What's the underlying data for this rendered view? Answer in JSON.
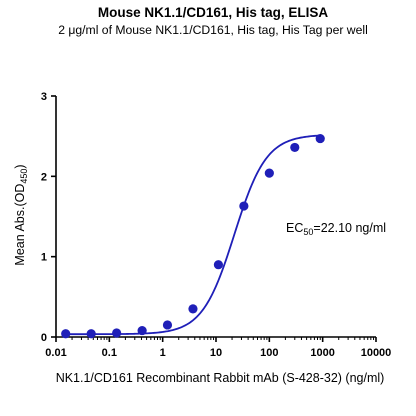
{
  "chart_data": {
    "type": "scatter",
    "title": "Mouse NK1.1/CD161, His tag, ELISA",
    "subtitle": "2 μg/ml of Mouse NK1.1/CD161, His tag, His Tag per well",
    "xlabel": "NK1.1/CD161 Recombinant Rabbit mAb (S-428-32) (ng/ml)",
    "ylabel": {
      "main": "Mean Abs.(OD",
      "sub": "450",
      "close": ")"
    },
    "xscale": "log",
    "xlim": [
      0.01,
      10000
    ],
    "ylim": [
      0,
      3
    ],
    "xticks": [
      "0.01",
      "0.1",
      "1",
      "10",
      "100",
      "1000",
      "10000"
    ],
    "xtick_values": [
      0.01,
      0.1,
      1,
      10,
      100,
      1000,
      10000
    ],
    "yticks": [
      "0",
      "1",
      "2",
      "3"
    ],
    "ytick_values": [
      0,
      1,
      2,
      3
    ],
    "x": [
      0.0152,
      0.0457,
      0.137,
      0.412,
      1.23,
      3.7,
      11.1,
      33.3,
      100,
      300,
      900
    ],
    "y": [
      0.04,
      0.04,
      0.05,
      0.08,
      0.15,
      0.35,
      0.9,
      1.63,
      2.04,
      2.36,
      2.47
    ],
    "fit": {
      "bottom": 0.035,
      "top": 2.52,
      "ec50": 22.1,
      "hill": 1.45
    },
    "annotation": {
      "prefix": "EC",
      "sub": "50",
      "suffix": "=22.10 ng/ml"
    },
    "color": "#1f1fb8",
    "grid": false
  }
}
